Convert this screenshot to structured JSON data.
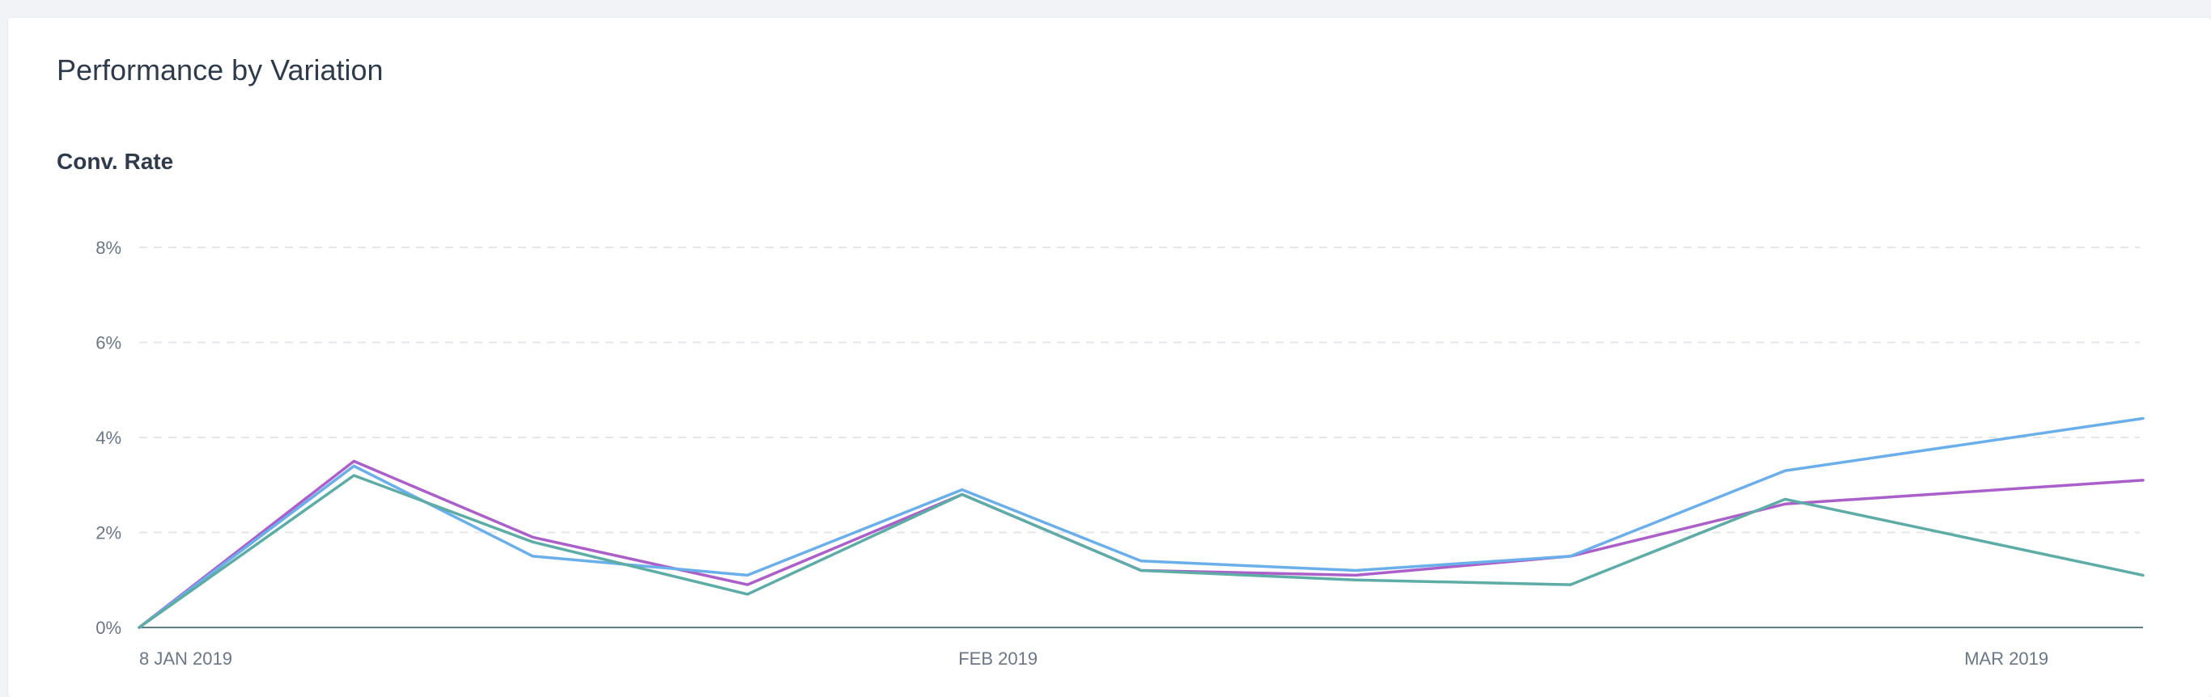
{
  "header": {
    "title": "Performance by Variation"
  },
  "metric": {
    "label": "Conv. Rate"
  },
  "chart_data": {
    "type": "line",
    "title": "Conv. Rate",
    "xlabel": "",
    "ylabel": "",
    "ylim": [
      0,
      8
    ],
    "y_ticks": [
      {
        "value": 0,
        "label": "0%"
      },
      {
        "value": 2,
        "label": "2%"
      },
      {
        "value": 4,
        "label": "4%"
      },
      {
        "value": 6,
        "label": "6%"
      },
      {
        "value": 8,
        "label": "8%"
      }
    ],
    "x_ticks": [
      {
        "date": "2019-01-08",
        "label": "8 JAN 2019"
      },
      {
        "date": "2019-02-01",
        "label": "FEB 2019"
      },
      {
        "date": "2019-03-01",
        "label": "MAR 2019"
      }
    ],
    "xlim": [
      "2019-01-08",
      "2019-03-05"
    ],
    "x": [
      "2019-01-08",
      "2019-01-14",
      "2019-01-19",
      "2019-01-25",
      "2019-01-31",
      "2019-02-05",
      "2019-02-11",
      "2019-02-17",
      "2019-02-23",
      "2019-03-05"
    ],
    "grid": true,
    "legend": "none",
    "series": [
      {
        "color": "#ab5fc9",
        "values": [
          0,
          3.5,
          1.9,
          0.9,
          2.8,
          1.2,
          1.1,
          1.5,
          2.6,
          3.1
        ]
      },
      {
        "color": "#6aaeea",
        "values": [
          0,
          3.4,
          1.5,
          1.1,
          2.9,
          1.4,
          1.2,
          1.5,
          3.3,
          4.4
        ]
      },
      {
        "color": "#5eaca6",
        "values": [
          0,
          3.2,
          1.8,
          0.7,
          2.8,
          1.2,
          1.0,
          0.9,
          2.7,
          1.1
        ]
      }
    ]
  }
}
